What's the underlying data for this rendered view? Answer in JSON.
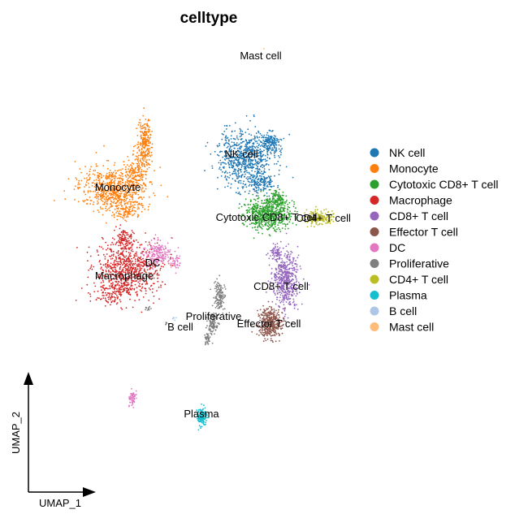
{
  "chart_data": {
    "type": "scatter",
    "title": "celltype",
    "xlabel": "UMAP_1",
    "ylabel": "UMAP_2",
    "grid": false,
    "legend_position": "right",
    "series": [
      {
        "name": "NK cell",
        "color": "#1f77b4"
      },
      {
        "name": "Monocyte",
        "color": "#ff7f0e"
      },
      {
        "name": "Cytotoxic CD8+ T cell",
        "color": "#2ca02c"
      },
      {
        "name": "Macrophage",
        "color": "#d62728"
      },
      {
        "name": "CD8+ T cell",
        "color": "#9467bd"
      },
      {
        "name": "Effector T cell",
        "color": "#8c564b"
      },
      {
        "name": "DC",
        "color": "#e377c2"
      },
      {
        "name": "Proliferative",
        "color": "#7f7f7f"
      },
      {
        "name": "CD4+ T cell",
        "color": "#bcbd22"
      },
      {
        "name": "Plasma",
        "color": "#17becf"
      },
      {
        "name": "B cell",
        "color": "#aec7e8"
      },
      {
        "name": "Mast cell",
        "color": "#ffbb78"
      }
    ],
    "cluster_labels": [
      "NK cell",
      "Monocyte",
      "Cytotoxic CD8+ T cell",
      "CD4+ T cell",
      "DC",
      "Macrophage",
      "CD8+ T cell",
      "Proliferative",
      "B cell",
      "Effector T cell",
      "Plasma",
      "Mast cell"
    ]
  }
}
